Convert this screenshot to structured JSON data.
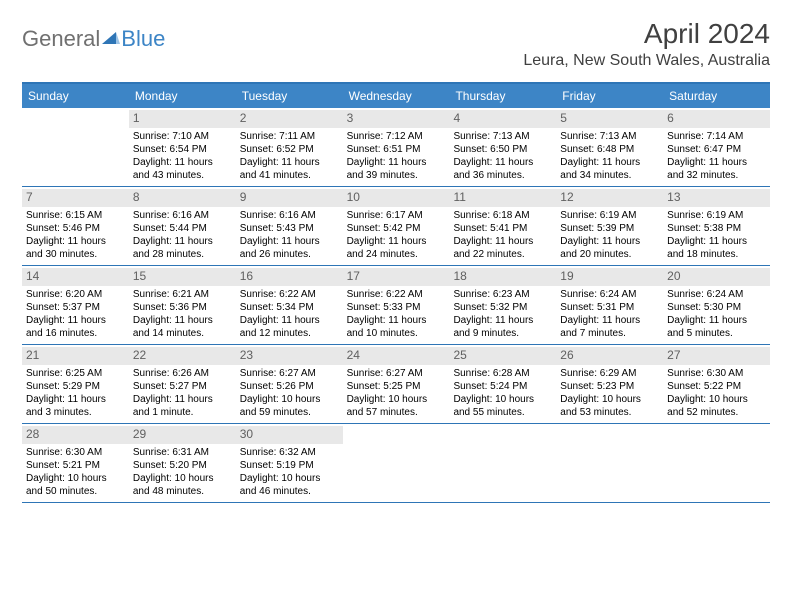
{
  "logo": {
    "text_general": "General",
    "text_blue": "Blue"
  },
  "title": "April 2024",
  "location": "Leura, New South Wales, Australia",
  "colors": {
    "header_bg": "#3d85c6",
    "header_text": "#ffffff",
    "border": "#2e75b6",
    "daynum_bg": "#e8e8e8",
    "daynum_text": "#606060",
    "body_text": "#000000",
    "title_text": "#404040"
  },
  "day_names": [
    "Sunday",
    "Monday",
    "Tuesday",
    "Wednesday",
    "Thursday",
    "Friday",
    "Saturday"
  ],
  "weeks": [
    [
      null,
      {
        "n": "1",
        "sr": "7:10 AM",
        "ss": "6:54 PM",
        "dl": "11 hours and 43 minutes."
      },
      {
        "n": "2",
        "sr": "7:11 AM",
        "ss": "6:52 PM",
        "dl": "11 hours and 41 minutes."
      },
      {
        "n": "3",
        "sr": "7:12 AM",
        "ss": "6:51 PM",
        "dl": "11 hours and 39 minutes."
      },
      {
        "n": "4",
        "sr": "7:13 AM",
        "ss": "6:50 PM",
        "dl": "11 hours and 36 minutes."
      },
      {
        "n": "5",
        "sr": "7:13 AM",
        "ss": "6:48 PM",
        "dl": "11 hours and 34 minutes."
      },
      {
        "n": "6",
        "sr": "7:14 AM",
        "ss": "6:47 PM",
        "dl": "11 hours and 32 minutes."
      }
    ],
    [
      {
        "n": "7",
        "sr": "6:15 AM",
        "ss": "5:46 PM",
        "dl": "11 hours and 30 minutes."
      },
      {
        "n": "8",
        "sr": "6:16 AM",
        "ss": "5:44 PM",
        "dl": "11 hours and 28 minutes."
      },
      {
        "n": "9",
        "sr": "6:16 AM",
        "ss": "5:43 PM",
        "dl": "11 hours and 26 minutes."
      },
      {
        "n": "10",
        "sr": "6:17 AM",
        "ss": "5:42 PM",
        "dl": "11 hours and 24 minutes."
      },
      {
        "n": "11",
        "sr": "6:18 AM",
        "ss": "5:41 PM",
        "dl": "11 hours and 22 minutes."
      },
      {
        "n": "12",
        "sr": "6:19 AM",
        "ss": "5:39 PM",
        "dl": "11 hours and 20 minutes."
      },
      {
        "n": "13",
        "sr": "6:19 AM",
        "ss": "5:38 PM",
        "dl": "11 hours and 18 minutes."
      }
    ],
    [
      {
        "n": "14",
        "sr": "6:20 AM",
        "ss": "5:37 PM",
        "dl": "11 hours and 16 minutes."
      },
      {
        "n": "15",
        "sr": "6:21 AM",
        "ss": "5:36 PM",
        "dl": "11 hours and 14 minutes."
      },
      {
        "n": "16",
        "sr": "6:22 AM",
        "ss": "5:34 PM",
        "dl": "11 hours and 12 minutes."
      },
      {
        "n": "17",
        "sr": "6:22 AM",
        "ss": "5:33 PM",
        "dl": "11 hours and 10 minutes."
      },
      {
        "n": "18",
        "sr": "6:23 AM",
        "ss": "5:32 PM",
        "dl": "11 hours and 9 minutes."
      },
      {
        "n": "19",
        "sr": "6:24 AM",
        "ss": "5:31 PM",
        "dl": "11 hours and 7 minutes."
      },
      {
        "n": "20",
        "sr": "6:24 AM",
        "ss": "5:30 PM",
        "dl": "11 hours and 5 minutes."
      }
    ],
    [
      {
        "n": "21",
        "sr": "6:25 AM",
        "ss": "5:29 PM",
        "dl": "11 hours and 3 minutes."
      },
      {
        "n": "22",
        "sr": "6:26 AM",
        "ss": "5:27 PM",
        "dl": "11 hours and 1 minute."
      },
      {
        "n": "23",
        "sr": "6:27 AM",
        "ss": "5:26 PM",
        "dl": "10 hours and 59 minutes."
      },
      {
        "n": "24",
        "sr": "6:27 AM",
        "ss": "5:25 PM",
        "dl": "10 hours and 57 minutes."
      },
      {
        "n": "25",
        "sr": "6:28 AM",
        "ss": "5:24 PM",
        "dl": "10 hours and 55 minutes."
      },
      {
        "n": "26",
        "sr": "6:29 AM",
        "ss": "5:23 PM",
        "dl": "10 hours and 53 minutes."
      },
      {
        "n": "27",
        "sr": "6:30 AM",
        "ss": "5:22 PM",
        "dl": "10 hours and 52 minutes."
      }
    ],
    [
      {
        "n": "28",
        "sr": "6:30 AM",
        "ss": "5:21 PM",
        "dl": "10 hours and 50 minutes."
      },
      {
        "n": "29",
        "sr": "6:31 AM",
        "ss": "5:20 PM",
        "dl": "10 hours and 48 minutes."
      },
      {
        "n": "30",
        "sr": "6:32 AM",
        "ss": "5:19 PM",
        "dl": "10 hours and 46 minutes."
      },
      null,
      null,
      null,
      null
    ]
  ],
  "labels": {
    "sunrise": "Sunrise:",
    "sunset": "Sunset:",
    "daylight": "Daylight:"
  }
}
